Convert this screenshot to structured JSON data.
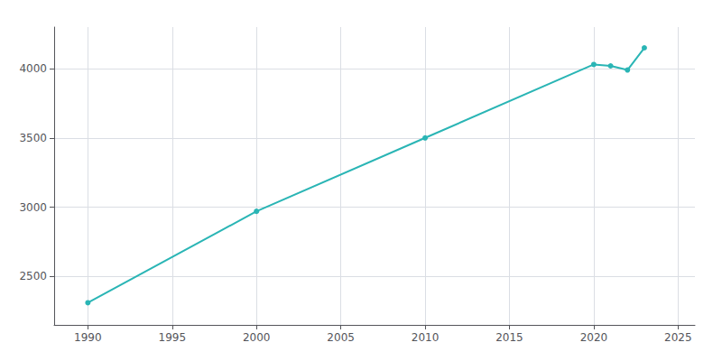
{
  "chart_data": {
    "type": "line",
    "x": [
      1990,
      2000,
      2010,
      2020,
      2021,
      2022,
      2023
    ],
    "values": [
      2310,
      2970,
      3500,
      4030,
      4020,
      3990,
      4150
    ],
    "color": "#2ab5b5",
    "marker": "circle",
    "xlim": [
      1988,
      2026
    ],
    "ylim": [
      2150,
      4300
    ],
    "xticks": [
      1990,
      1995,
      2000,
      2005,
      2010,
      2015,
      2020,
      2025
    ],
    "yticks": [
      2500,
      3000,
      3500,
      4000
    ],
    "grid": true
  }
}
